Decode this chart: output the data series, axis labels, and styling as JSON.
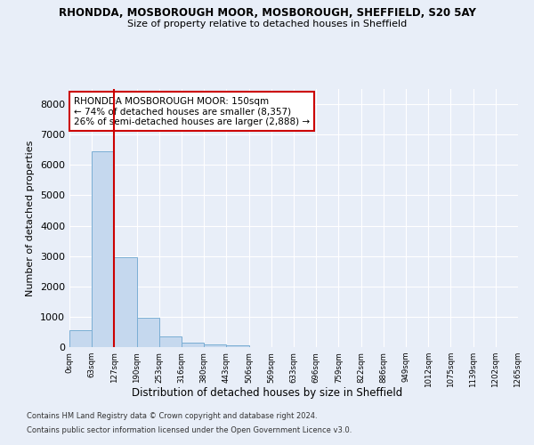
{
  "title": "RHONDDA, MOSBOROUGH MOOR, MOSBOROUGH, SHEFFIELD, S20 5AY",
  "subtitle": "Size of property relative to detached houses in Sheffield",
  "xlabel": "Distribution of detached houses by size in Sheffield",
  "ylabel": "Number of detached properties",
  "bar_color": "#c5d8ee",
  "bar_edge_color": "#7aaed4",
  "background_color": "#e8eef8",
  "grid_color": "#ffffff",
  "vline_color": "#cc0000",
  "vline_x": 2,
  "annotation_text": "RHONDDA MOSBOROUGH MOOR: 150sqm\n← 74% of detached houses are smaller (8,357)\n26% of semi-detached houses are larger (2,888) →",
  "annotation_box_color": "#cc0000",
  "tick_labels": [
    "0sqm",
    "63sqm",
    "127sqm",
    "190sqm",
    "253sqm",
    "316sqm",
    "380sqm",
    "443sqm",
    "506sqm",
    "569sqm",
    "633sqm",
    "696sqm",
    "759sqm",
    "822sqm",
    "886sqm",
    "949sqm",
    "1012sqm",
    "1075sqm",
    "1139sqm",
    "1202sqm",
    "1265sqm"
  ],
  "bar_values": [
    550,
    6450,
    2950,
    970,
    340,
    160,
    100,
    70,
    0,
    0,
    0,
    0,
    0,
    0,
    0,
    0,
    0,
    0,
    0,
    0
  ],
  "ylim": [
    0,
    8500
  ],
  "yticks": [
    0,
    1000,
    2000,
    3000,
    4000,
    5000,
    6000,
    7000,
    8000
  ],
  "footer1": "Contains HM Land Registry data © Crown copyright and database right 2024.",
  "footer2": "Contains public sector information licensed under the Open Government Licence v3.0."
}
